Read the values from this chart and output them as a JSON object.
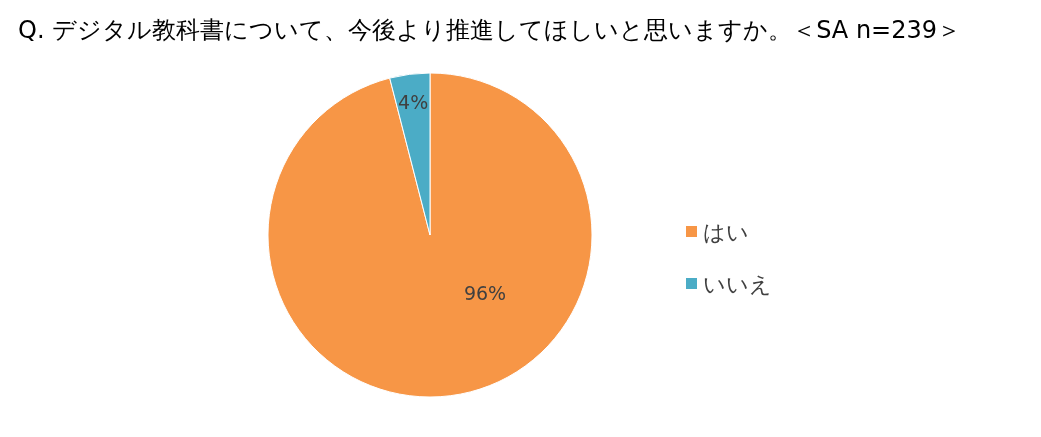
{
  "chart_data": {
    "type": "pie",
    "title": "Q. デジタル教科書について、今後より推進してほしいと思いますか。＜SA n=239＞",
    "categories": [
      "はい",
      "いいえ"
    ],
    "values": [
      96,
      4
    ],
    "colors": [
      "#f79646",
      "#4bacc6"
    ],
    "value_labels": [
      "96%",
      "4%"
    ],
    "legend": "right"
  }
}
